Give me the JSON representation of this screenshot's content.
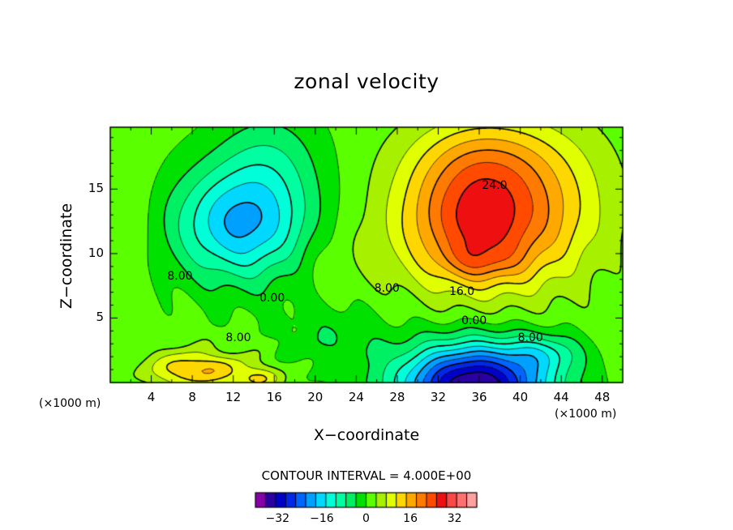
{
  "chart_data": {
    "type": "contour",
    "title": "zonal velocity",
    "xlabel": "X−coordinate",
    "ylabel": "Z−coordinate",
    "x_unit_label": "(×1000 m)",
    "x_ticks": [
      4,
      8,
      12,
      16,
      20,
      24,
      28,
      32,
      36,
      40,
      44,
      48
    ],
    "y_ticks": [
      5,
      10,
      15
    ],
    "xlim": [
      0,
      50
    ],
    "ylim": [
      0,
      19.8
    ],
    "contour_interval_text": "CONTOUR INTERVAL = 4.000E+00",
    "contour_interval": 4.0,
    "contour_labels": [
      {
        "text": "24.0",
        "x": 37.5,
        "y": 15.2
      },
      {
        "text": "16.0",
        "x": 34.3,
        "y": 7.0
      },
      {
        "text": "0.00",
        "x": 15.8,
        "y": 6.5
      },
      {
        "text": "0.00",
        "x": 35.5,
        "y": 4.7
      },
      {
        "text": "8.00",
        "x": 6.8,
        "y": 8.2
      },
      {
        "text": "8.00",
        "x": 12.5,
        "y": 3.4
      },
      {
        "text": "8.00",
        "x": 27.0,
        "y": 7.2
      },
      {
        "text": "8.00",
        "x": 41.0,
        "y": 3.4
      }
    ],
    "field_features": [
      {
        "x": 36,
        "y": 12.5,
        "value": 28
      },
      {
        "x": 36,
        "y": 9.5,
        "value": 28
      },
      {
        "x": 12.5,
        "y": 12.3,
        "value": -16
      },
      {
        "x": 35.5,
        "y": 0.5,
        "value": -32
      },
      {
        "x": 8.5,
        "y": 1.2,
        "value": 16
      },
      {
        "x": 14,
        "y": 0.5,
        "value": 16
      }
    ],
    "colorbar": {
      "min": -40,
      "max": 40,
      "tick_labels": [
        "−32",
        "−16",
        "0",
        "16",
        "32"
      ],
      "tick_values": [
        -32,
        -16,
        0,
        16,
        32
      ],
      "colors": [
        "#8800aa",
        "#2a00a0",
        "#0000c8",
        "#0028e6",
        "#0064ff",
        "#00a0ff",
        "#00d8ff",
        "#00ffd8",
        "#00ffa0",
        "#00f064",
        "#00e100",
        "#5aff00",
        "#a6f000",
        "#e0ff00",
        "#ffd700",
        "#ffa800",
        "#ff7a00",
        "#ff4a00",
        "#ee1010",
        "#f84848",
        "#ff7070",
        "#ffa0a0"
      ]
    }
  }
}
